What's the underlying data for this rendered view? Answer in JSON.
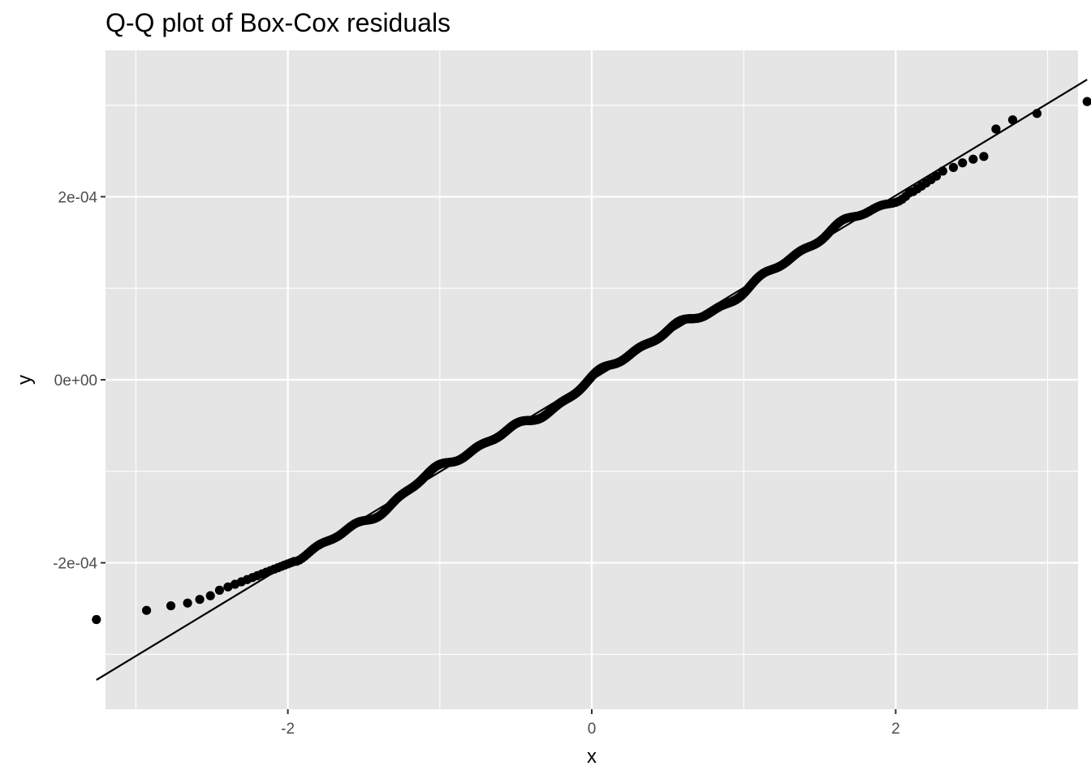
{
  "chart_data": {
    "type": "scatter",
    "title": "Q-Q plot of Box-Cox residuals",
    "xlabel": "x",
    "ylabel": "y",
    "xlim": [
      -3.2,
      3.2
    ],
    "ylim": [
      -0.00036,
      0.00036
    ],
    "x_ticks": [
      {
        "value": -2,
        "label": "-2"
      },
      {
        "value": 0,
        "label": "0"
      },
      {
        "value": 2,
        "label": "2"
      }
    ],
    "y_ticks": [
      {
        "value": -0.0002,
        "label": "-2e-04"
      },
      {
        "value": 0,
        "label": "0e+00"
      },
      {
        "value": 0.0002,
        "label": "2e-04"
      }
    ],
    "grid": true,
    "background": "#e5e5e5",
    "grid_color": "#ffffff",
    "point_color": "#000000",
    "reference_line": {
      "x": [
        -3.26,
        3.26
      ],
      "y": [
        -0.000328,
        0.000328
      ]
    },
    "outlier_points": {
      "x": [
        -3.26,
        -2.93,
        -2.77,
        -2.66,
        -2.58,
        -2.51,
        -2.45,
        2.31,
        2.38,
        2.44,
        2.51,
        2.58,
        2.66,
        2.77,
        2.93,
        3.26
      ],
      "y": [
        -0.000262,
        -0.000252,
        -0.000247,
        -0.000244,
        -0.00024,
        -0.000236,
        -0.00023,
        0.000228,
        0.000232,
        0.000237,
        0.000241,
        0.000244,
        0.000274,
        0.000284,
        0.000291,
        0.000304
      ]
    },
    "qq_samples": 900
  }
}
